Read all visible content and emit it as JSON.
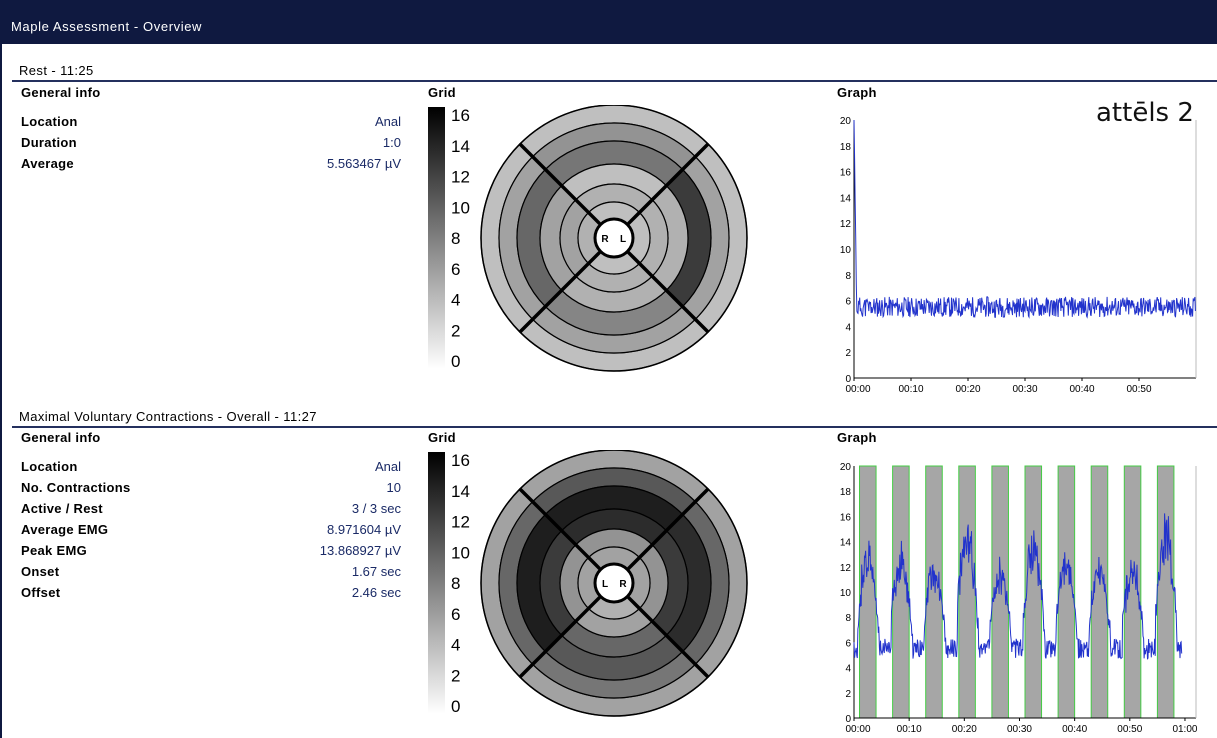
{
  "window": {
    "title": "Maple Assessment - Overview"
  },
  "annotation": "attēls 2",
  "colors": {
    "titlebar": "#0f1940",
    "accent_value": "#1a2a66",
    "trace": "#2233cc",
    "active_band_edge": "#44cc44"
  },
  "sections": [
    {
      "title": "Rest - 11:25",
      "general_info": {
        "header": "General info",
        "rows": [
          {
            "label": "Location",
            "value": "Anal"
          },
          {
            "label": "Duration",
            "value": "1:0"
          },
          {
            "label": "Average",
            "value": "5.563467 µV"
          }
        ]
      },
      "grid": {
        "header": "Grid",
        "scale_ticks": [
          "16",
          "14",
          "12",
          "10",
          "8",
          "6",
          "4",
          "2",
          "0"
        ],
        "center_labels": [
          "R",
          "L"
        ],
        "sector_values": {
          "top": [
            4,
            7,
            9,
            4,
            5
          ],
          "right": [
            4,
            6,
            13,
            5,
            5
          ],
          "bottom": [
            4,
            6,
            8,
            5,
            5
          ],
          "left": [
            4,
            6,
            10,
            6,
            6
          ]
        }
      },
      "graph": {
        "header": "Graph",
        "chart_data": {
          "type": "line",
          "title": "",
          "xlabel": "",
          "ylabel": "",
          "ylim": [
            0,
            20
          ],
          "xlim_seconds": [
            0,
            60
          ],
          "y_ticks": [
            "0",
            "2",
            "4",
            "6",
            "8",
            "10",
            "12",
            "14",
            "16",
            "18",
            "20"
          ],
          "x_ticks": [
            "00:00",
            "00:10",
            "00:20",
            "00:30",
            "00:40",
            "00:50"
          ],
          "series": [
            {
              "baseline": 5.5,
              "noise": 0.5,
              "initial_spike": 20
            }
          ]
        }
      }
    },
    {
      "title": "Maximal Voluntary Contractions - Overall - 11:27",
      "general_info": {
        "header": "General info",
        "rows": [
          {
            "label": "Location",
            "value": "Anal"
          },
          {
            "label": "No. Contractions",
            "value": "10"
          },
          {
            "label": "Active / Rest",
            "value": "3 / 3 sec"
          },
          {
            "label": "Average EMG",
            "value": "8.971604 µV"
          },
          {
            "label": "Peak EMG",
            "value": "13.868927 µV"
          },
          {
            "label": "Onset",
            "value": "1.67 sec"
          },
          {
            "label": "Offset",
            "value": "2.46 sec"
          }
        ]
      },
      "grid": {
        "header": "Grid",
        "scale_ticks": [
          "16",
          "14",
          "12",
          "10",
          "8",
          "6",
          "4",
          "2",
          "0"
        ],
        "center_labels": [
          "L",
          "R"
        ],
        "sector_values": {
          "top": [
            6,
            11,
            15,
            14,
            7
          ],
          "right": [
            6,
            10,
            14,
            13,
            7
          ],
          "bottom": [
            6,
            9,
            11,
            10,
            6
          ],
          "left": [
            6,
            10,
            15,
            13,
            7
          ]
        }
      },
      "graph": {
        "header": "Graph",
        "chart_data": {
          "type": "line",
          "title": "",
          "xlabel": "",
          "ylabel": "",
          "ylim": [
            0,
            20
          ],
          "xlim_seconds": [
            0,
            62
          ],
          "y_ticks": [
            "0",
            "2",
            "4",
            "6",
            "8",
            "10",
            "12",
            "14",
            "16",
            "18",
            "20"
          ],
          "x_ticks": [
            "00:00",
            "00:10",
            "00:20",
            "00:30",
            "00:40",
            "00:50",
            "01:00"
          ],
          "active_bands_seconds": [
            [
              1,
              4
            ],
            [
              7,
              10
            ],
            [
              13,
              16
            ],
            [
              19,
              22
            ],
            [
              25,
              28
            ],
            [
              31,
              34
            ],
            [
              37,
              40
            ],
            [
              43,
              46
            ],
            [
              49,
              52
            ],
            [
              55,
              58
            ]
          ],
          "series": [
            {
              "rest_level": 5.5,
              "peaks": [
                13.0,
                13.0,
                12.0,
                15.0,
                12.0,
                14.0,
                12.5,
                12.0,
                12.0,
                15.0
              ]
            }
          ]
        }
      }
    }
  ]
}
